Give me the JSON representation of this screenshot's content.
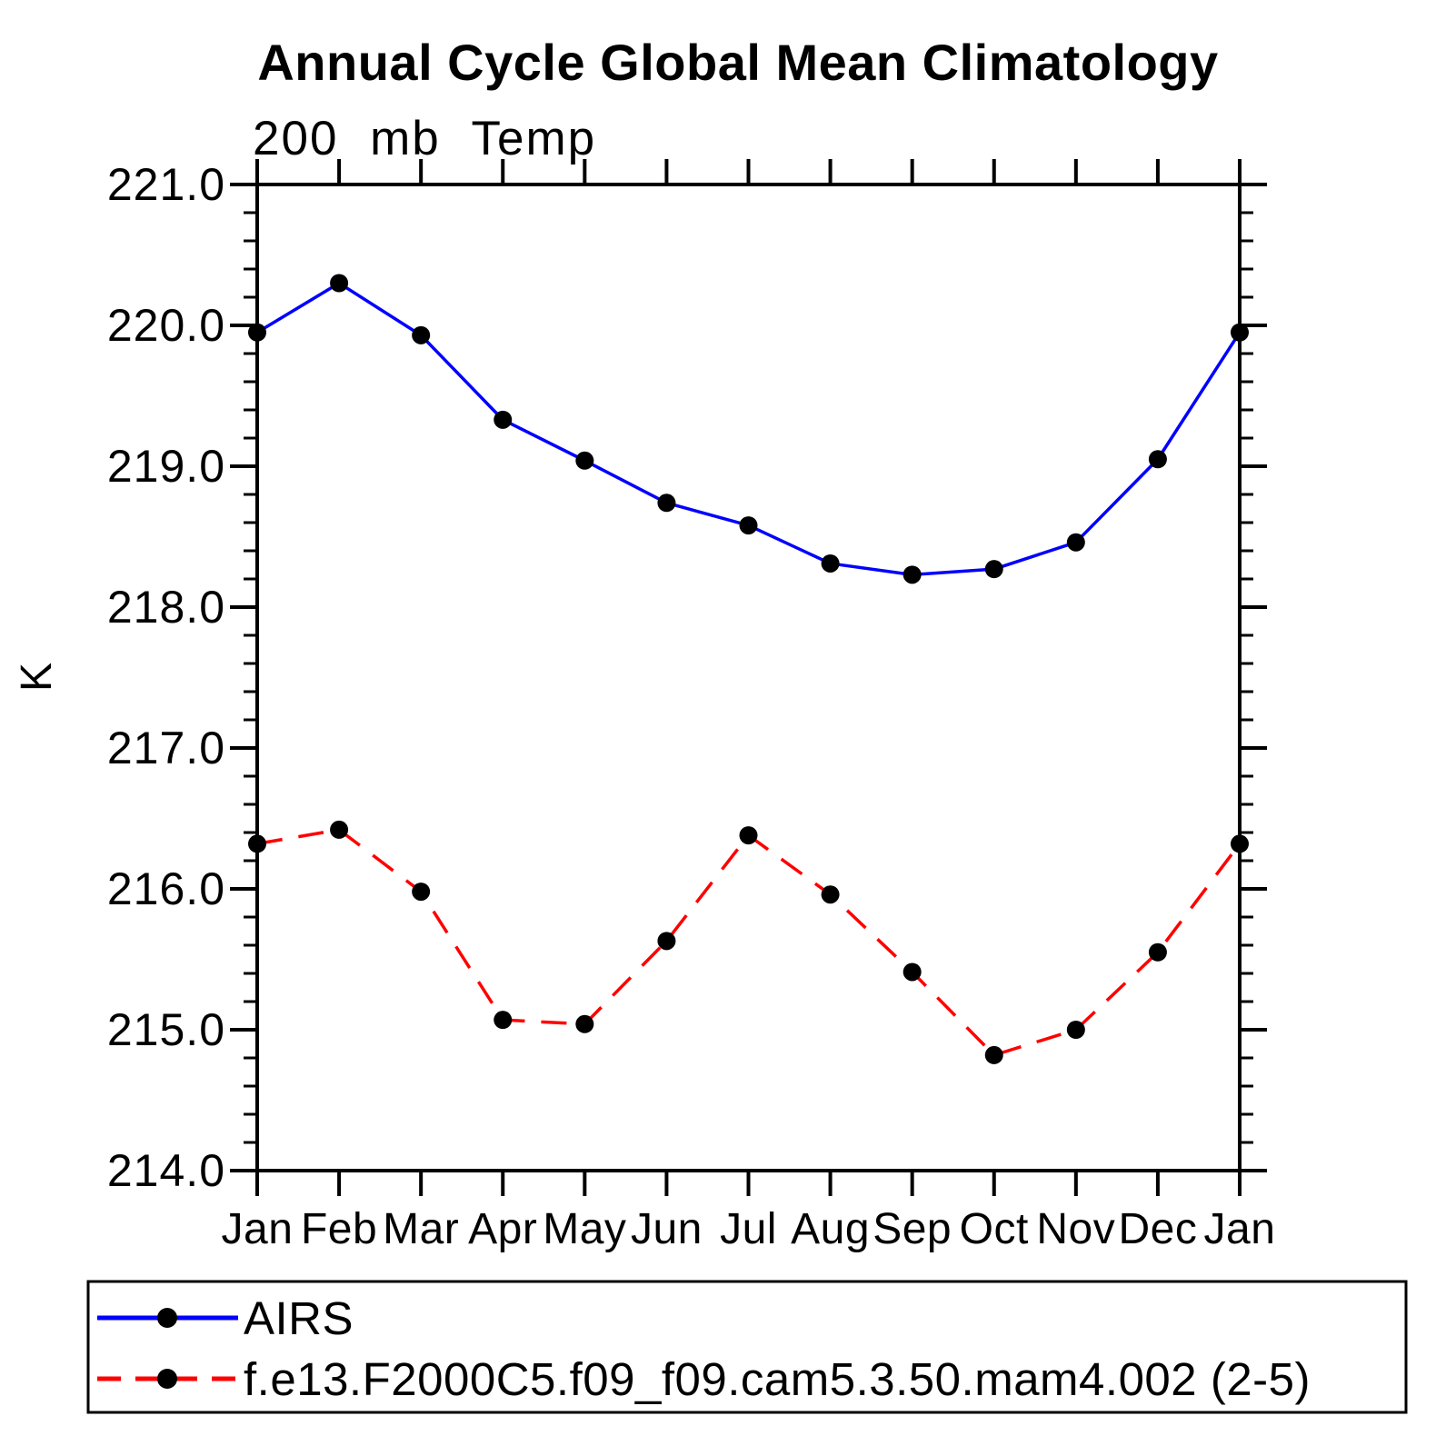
{
  "header": {
    "title": "Annual Cycle Global Mean Climatology",
    "subtitle": "200 mb Temp"
  },
  "chart_data": {
    "type": "line",
    "title": "Annual Cycle Global Mean Climatology",
    "subtitle": "200 mb Temp",
    "xlabel": "",
    "ylabel": "K",
    "categories": [
      "Jan",
      "Feb",
      "Mar",
      "Apr",
      "May",
      "Jun",
      "Jul",
      "Aug",
      "Sep",
      "Oct",
      "Nov",
      "Dec",
      "Jan"
    ],
    "ylim": [
      214.0,
      221.0
    ],
    "ytick_major_interval": 1.0,
    "ytick_minor_interval": 0.2,
    "ytick_labels": [
      "214.0",
      "215.0",
      "216.0",
      "217.0",
      "218.0",
      "219.0",
      "220.0",
      "221.0"
    ],
    "grid": false,
    "background_color": "#FFFFFF",
    "axis_color": "#000000",
    "marker_color": "#000000",
    "legend_position": "bottom-left-box",
    "series": [
      {
        "name": "AIRS",
        "color": "#0000FF",
        "line_style": "solid",
        "marker": "filled-circle",
        "values": [
          219.95,
          220.3,
          219.93,
          219.33,
          219.04,
          218.74,
          218.58,
          218.31,
          218.23,
          218.27,
          218.46,
          219.05,
          219.95
        ]
      },
      {
        "name": "f.e13.F2000C5.f09_f09.cam5.3.50.mam4.002 (2-5)",
        "color": "#FF0000",
        "line_style": "dashed",
        "marker": "filled-circle",
        "values": [
          216.32,
          216.42,
          215.98,
          215.07,
          215.04,
          215.63,
          216.38,
          215.96,
          215.41,
          214.82,
          215.0,
          215.55,
          216.32
        ]
      }
    ]
  }
}
